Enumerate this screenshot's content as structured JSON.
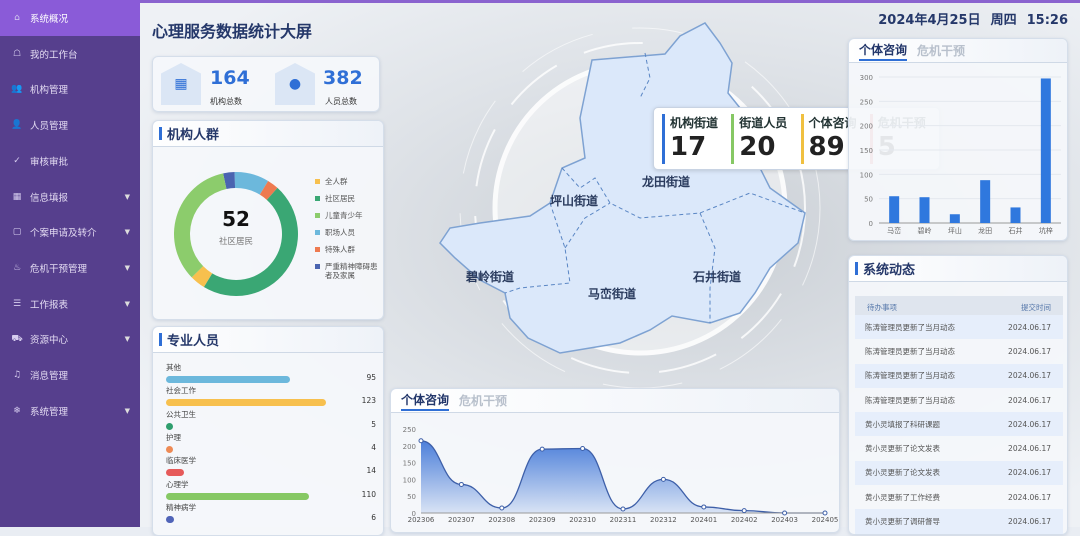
{
  "sidebar": {
    "items": [
      {
        "label": "系统概况",
        "icon": "home-icon",
        "glyph": "⌂",
        "active": true,
        "expandable": false
      },
      {
        "label": "我的工作台",
        "icon": "workbench-icon",
        "glyph": "☖",
        "expandable": false
      },
      {
        "label": "机构管理",
        "icon": "org-icon",
        "glyph": "👥",
        "expandable": false
      },
      {
        "label": "人员管理",
        "icon": "user-icon",
        "glyph": "👤",
        "expandable": false
      },
      {
        "label": "审核审批",
        "icon": "check-icon",
        "glyph": "✓",
        "expandable": false
      },
      {
        "label": "信息填报",
        "icon": "form-icon",
        "glyph": "▦",
        "expandable": true
      },
      {
        "label": "个案申请及转介",
        "icon": "note-icon",
        "glyph": "▢",
        "expandable": true
      },
      {
        "label": "危机干预管理",
        "icon": "fire-icon",
        "glyph": "♨",
        "expandable": true
      },
      {
        "label": "工作报表",
        "icon": "report-icon",
        "glyph": "☰",
        "expandable": true
      },
      {
        "label": "资源中心",
        "icon": "resource-icon",
        "glyph": "⛟",
        "expandable": true
      },
      {
        "label": "消息管理",
        "icon": "bell-icon",
        "glyph": "♫",
        "expandable": false
      },
      {
        "label": "系统管理",
        "icon": "settings-icon",
        "glyph": "❄",
        "expandable": true
      }
    ]
  },
  "header": {
    "title": "心理服务数据统计大屏",
    "date": "2024年4月25日",
    "weekday": "周四",
    "time": "15:26"
  },
  "stats": [
    {
      "value": "164",
      "label": "机构总数",
      "icon": "building-icon"
    },
    {
      "value": "382",
      "label": "人员总数",
      "icon": "person-icon"
    }
  ],
  "org_crowd": {
    "title": "机构人群",
    "center_value": "52",
    "center_label": "社区居民"
  },
  "professional": {
    "title": "专业人员",
    "items": [
      {
        "label": "其他",
        "value": 95,
        "color": "#6cb8dc"
      },
      {
        "label": "社会工作",
        "value": 123,
        "color": "#f7c04e"
      },
      {
        "label": "公共卫生",
        "value": 5,
        "color": "#2f9e6e"
      },
      {
        "label": "护理",
        "value": 4,
        "color": "#ee8a55"
      },
      {
        "label": "临床医学",
        "value": 14,
        "color": "#e65a5a"
      },
      {
        "label": "心理学",
        "value": 110,
        "color": "#86c864"
      },
      {
        "label": "精神病学",
        "value": 6,
        "color": "#5064b8"
      }
    ]
  },
  "map": {
    "regions": [
      "坪山街道",
      "龙田街道",
      "碧岭街道",
      "马峦街道",
      "石井街道"
    ],
    "tooltip": [
      {
        "label": "机构街道",
        "value": "17",
        "color": "#2f6fd6"
      },
      {
        "label": "街道人员",
        "value": "20",
        "color": "#86c864"
      },
      {
        "label": "个体咨询",
        "value": "89",
        "color": "#f0c040"
      },
      {
        "label": "危机干预",
        "value": "5",
        "color": "#e06060"
      }
    ]
  },
  "line_panel": {
    "tabs": [
      "个体咨询",
      "危机干预"
    ],
    "active_tab": 0
  },
  "bar_panel": {
    "tabs": [
      "个体咨询",
      "危机干预"
    ],
    "active_tab": 0
  },
  "dynamics": {
    "title": "系统动态",
    "columns": [
      "待办事项",
      "提交时间"
    ],
    "rows": [
      [
        "陈涛管理员更新了当月动态",
        "2024.06.17"
      ],
      [
        "陈涛管理员更新了当月动态",
        "2024.06.17"
      ],
      [
        "陈涛管理员更新了当月动态",
        "2024.06.17"
      ],
      [
        "陈涛管理员更新了当月动态",
        "2024.06.17"
      ],
      [
        "黄小灵填报了科研课题",
        "2024.06.17"
      ],
      [
        "黄小灵更新了论文发表",
        "2024.06.17"
      ],
      [
        "黄小灵更新了论文发表",
        "2024.06.17"
      ],
      [
        "黄小灵更新了工作经费",
        "2024.06.17"
      ],
      [
        "黄小灵更新了调研督导",
        "2024.06.17"
      ]
    ]
  },
  "colors": {
    "sidebar": "#563f8d",
    "active": "#8a5bd8",
    "accent": "#2f6fd6"
  },
  "chart_data": [
    {
      "type": "pie",
      "legend_placement": "right",
      "categories": [
        "全人群",
        "社区居民",
        "儿童青少年",
        "职场人员",
        "特殊人群",
        "严重精神障碍患者及家属"
      ],
      "values": [
        4,
        47,
        34,
        9,
        3,
        3
      ],
      "colors": [
        "#f7c04e",
        "#3aa774",
        "#8ccc6c",
        "#6cb8dc",
        "#ee7a50",
        "#4a64b0"
      ]
    },
    {
      "type": "bar",
      "categories": [
        "马峦",
        "碧岭",
        "坪山",
        "龙田",
        "石井",
        "坑梓"
      ],
      "values": [
        55,
        53,
        18,
        88,
        32,
        297
      ],
      "ylim": [
        0,
        300
      ],
      "yticks": [
        0,
        50,
        100,
        150,
        200,
        250,
        300
      ],
      "color": "#2f78de"
    },
    {
      "type": "area",
      "categories": [
        "202306",
        "202307",
        "202308",
        "202309",
        "202310",
        "202311",
        "202312",
        "202401",
        "202402",
        "202403",
        "202405"
      ],
      "values": [
        215,
        85,
        15,
        190,
        192,
        12,
        100,
        18,
        7,
        0,
        0
      ],
      "ylim": [
        0,
        250
      ],
      "yticks": [
        0,
        50,
        100,
        150,
        200,
        250
      ],
      "color": "#3a72d6"
    }
  ]
}
